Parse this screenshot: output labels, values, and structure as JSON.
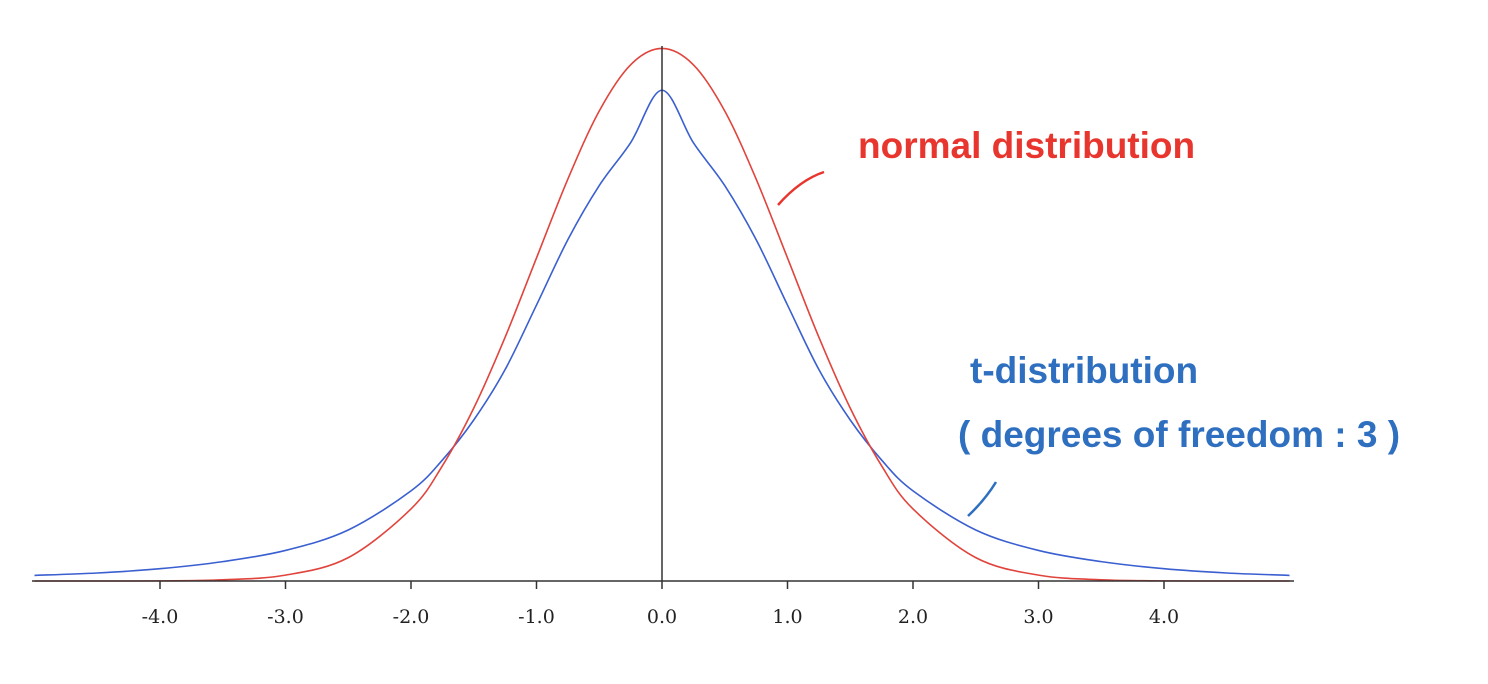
{
  "chart_data": {
    "type": "line",
    "title": "",
    "xlabel": "",
    "ylabel": "",
    "xlim": [
      -5.0,
      5.0
    ],
    "ylim": [
      0,
      0.42
    ],
    "grid": false,
    "x_ticks": [
      -4.0,
      -3.0,
      -2.0,
      -1.0,
      0.0,
      1.0,
      2.0,
      3.0,
      4.0
    ],
    "x_tick_labels": [
      "-4.0",
      "-3.0",
      "-2.0",
      "-1.0",
      "0.0",
      "1.0",
      "2.0",
      "3.0",
      "4.0"
    ],
    "series": [
      {
        "name": "normal distribution",
        "color": "#e0443c",
        "x": [
          -5.0,
          -4.5,
          -4.0,
          -3.5,
          -3.0,
          -2.5,
          -2.0,
          -1.75,
          -1.5,
          -1.25,
          -1.0,
          -0.75,
          -0.5,
          -0.25,
          0.0,
          0.25,
          0.5,
          0.75,
          1.0,
          1.25,
          1.5,
          1.75,
          2.0,
          2.5,
          3.0,
          3.5,
          4.0,
          4.5,
          5.0
        ],
        "values": [
          0.0,
          0.0,
          0.0001,
          0.0009,
          0.0044,
          0.0175,
          0.054,
          0.0863,
          0.1295,
          0.1826,
          0.242,
          0.3011,
          0.3521,
          0.3867,
          0.3989,
          0.3867,
          0.3521,
          0.3011,
          0.242,
          0.1826,
          0.1295,
          0.0863,
          0.054,
          0.0175,
          0.0044,
          0.0009,
          0.0001,
          0.0,
          0.0
        ]
      },
      {
        "name": "t-distribution ( degrees of freedom : 3 )",
        "color": "#3a5fd0",
        "x": [
          -5.0,
          -4.5,
          -4.0,
          -3.5,
          -3.0,
          -2.5,
          -2.0,
          -1.75,
          -1.5,
          -1.25,
          -1.0,
          -0.75,
          -0.5,
          -0.25,
          0.0,
          0.25,
          0.5,
          0.75,
          1.0,
          1.25,
          1.5,
          1.75,
          2.0,
          2.5,
          3.0,
          3.5,
          4.0,
          4.5,
          5.0
        ],
        "values": [
          0.0042,
          0.006,
          0.0092,
          0.0145,
          0.0229,
          0.0382,
          0.0675,
          0.0906,
          0.1206,
          0.1584,
          0.2067,
          0.2557,
          0.2962,
          0.3283,
          0.3676,
          0.3283,
          0.2962,
          0.2557,
          0.2067,
          0.1584,
          0.1206,
          0.0906,
          0.0675,
          0.0382,
          0.0229,
          0.0145,
          0.0092,
          0.006,
          0.0042
        ]
      }
    ],
    "annotations": [
      {
        "text": "normal distribution",
        "color": "#e8352d"
      },
      {
        "text": "t-distribution",
        "color": "#2f6fc0"
      },
      {
        "text": "( degrees of freedom : 3 )",
        "color": "#2f6fc0"
      }
    ]
  }
}
